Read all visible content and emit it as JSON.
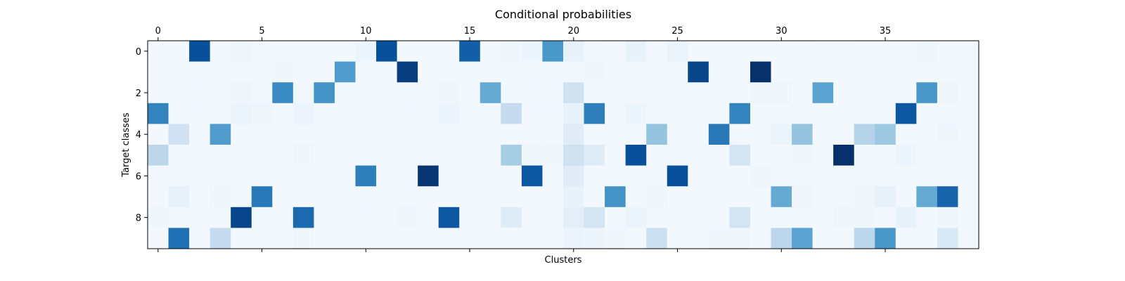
{
  "chart_data": {
    "type": "heatmap",
    "title": "Conditional probabilities",
    "xlabel": "Clusters",
    "ylabel": "Target classes",
    "x_axis_position": "top",
    "x_ticks": [
      0,
      5,
      10,
      15,
      20,
      25,
      30,
      35
    ],
    "y_ticks": [
      0,
      2,
      4,
      6,
      8
    ],
    "n_cols": 40,
    "n_rows": 10,
    "colormap": "Blues",
    "vmin": 0,
    "vmax": 1,
    "grid": false,
    "values": [
      [
        0.02,
        0.02,
        0.88,
        0.02,
        0.04,
        0.03,
        0.02,
        0.02,
        0.02,
        0.02,
        0.05,
        0.88,
        0.02,
        0.02,
        0.02,
        0.82,
        0.02,
        0.04,
        0.05,
        0.6,
        0.08,
        0.03,
        0.02,
        0.08,
        0.02,
        0.06,
        0.02,
        0.02,
        0.02,
        0.02,
        0.02,
        0.02,
        0.03,
        0.03,
        0.02,
        0.02,
        0.02,
        0.04,
        0.02,
        0.02
      ],
      [
        0.02,
        0.02,
        0.02,
        0.02,
        0.03,
        0.03,
        0.04,
        0.02,
        0.02,
        0.58,
        0.02,
        0.02,
        0.95,
        0.02,
        0.02,
        0.02,
        0.02,
        0.02,
        0.02,
        0.02,
        0.03,
        0.04,
        0.02,
        0.02,
        0.02,
        0.02,
        0.92,
        0.02,
        0.02,
        1.0,
        0.02,
        0.02,
        0.02,
        0.02,
        0.02,
        0.02,
        0.02,
        0.02,
        0.02,
        0.02
      ],
      [
        0.02,
        0.02,
        0.03,
        0.02,
        0.04,
        0.03,
        0.65,
        0.03,
        0.62,
        0.02,
        0.02,
        0.02,
        0.03,
        0.02,
        0.04,
        0.02,
        0.52,
        0.02,
        0.03,
        0.03,
        0.2,
        0.02,
        0.02,
        0.02,
        0.02,
        0.02,
        0.03,
        0.02,
        0.02,
        0.04,
        0.04,
        0.02,
        0.55,
        0.02,
        0.02,
        0.02,
        0.02,
        0.6,
        0.04,
        0.02
      ],
      [
        0.68,
        0.02,
        0.02,
        0.02,
        0.06,
        0.04,
        0.02,
        0.06,
        0.02,
        0.02,
        0.02,
        0.02,
        0.02,
        0.02,
        0.05,
        0.02,
        0.03,
        0.25,
        0.02,
        0.02,
        0.08,
        0.7,
        0.02,
        0.05,
        0.02,
        0.02,
        0.02,
        0.03,
        0.68,
        0.02,
        0.02,
        0.03,
        0.02,
        0.02,
        0.02,
        0.02,
        0.85,
        0.02,
        0.02,
        0.02
      ],
      [
        0.02,
        0.2,
        0.02,
        0.58,
        0.02,
        0.02,
        0.02,
        0.02,
        0.02,
        0.02,
        0.03,
        0.02,
        0.02,
        0.02,
        0.02,
        0.02,
        0.02,
        0.02,
        0.03,
        0.02,
        0.12,
        0.02,
        0.02,
        0.02,
        0.4,
        0.03,
        0.02,
        0.72,
        0.02,
        0.02,
        0.06,
        0.4,
        0.02,
        0.02,
        0.3,
        0.38,
        0.02,
        0.02,
        0.04,
        0.02
      ],
      [
        0.28,
        0.02,
        0.02,
        0.02,
        0.03,
        0.02,
        0.02,
        0.04,
        0.02,
        0.02,
        0.02,
        0.02,
        0.02,
        0.02,
        0.02,
        0.02,
        0.02,
        0.35,
        0.04,
        0.04,
        0.2,
        0.12,
        0.02,
        0.88,
        0.02,
        0.02,
        0.02,
        0.02,
        0.18,
        0.02,
        0.02,
        0.04,
        0.02,
        1.0,
        0.02,
        0.02,
        0.05,
        0.02,
        0.02,
        0.02
      ],
      [
        0.02,
        0.02,
        0.03,
        0.02,
        0.02,
        0.02,
        0.02,
        0.02,
        0.02,
        0.02,
        0.7,
        0.02,
        0.02,
        0.98,
        0.02,
        0.03,
        0.02,
        0.02,
        0.85,
        0.02,
        0.12,
        0.02,
        0.02,
        0.02,
        0.02,
        0.88,
        0.02,
        0.02,
        0.02,
        0.04,
        0.02,
        0.02,
        0.02,
        0.02,
        0.02,
        0.02,
        0.02,
        0.02,
        0.02,
        0.02
      ],
      [
        0.02,
        0.08,
        0.02,
        0.04,
        0.02,
        0.72,
        0.02,
        0.02,
        0.02,
        0.02,
        0.03,
        0.02,
        0.03,
        0.02,
        0.02,
        0.02,
        0.02,
        0.02,
        0.02,
        0.02,
        0.08,
        0.02,
        0.62,
        0.02,
        0.04,
        0.02,
        0.02,
        0.02,
        0.02,
        0.02,
        0.52,
        0.04,
        0.02,
        0.02,
        0.04,
        0.08,
        0.02,
        0.52,
        0.8,
        0.02
      ],
      [
        0.04,
        0.03,
        0.02,
        0.02,
        0.92,
        0.02,
        0.02,
        0.78,
        0.02,
        0.03,
        0.02,
        0.02,
        0.04,
        0.02,
        0.85,
        0.02,
        0.02,
        0.12,
        0.02,
        0.02,
        0.1,
        0.18,
        0.02,
        0.06,
        0.02,
        0.02,
        0.02,
        0.02,
        0.18,
        0.02,
        0.02,
        0.02,
        0.02,
        0.04,
        0.04,
        0.02,
        0.08,
        0.02,
        0.04,
        0.02
      ],
      [
        0.02,
        0.75,
        0.02,
        0.25,
        0.02,
        0.03,
        0.02,
        0.04,
        0.02,
        0.02,
        0.02,
        0.02,
        0.02,
        0.02,
        0.02,
        0.02,
        0.02,
        0.02,
        0.02,
        0.02,
        0.06,
        0.05,
        0.04,
        0.02,
        0.22,
        0.02,
        0.03,
        0.04,
        0.04,
        0.02,
        0.28,
        0.55,
        0.02,
        0.02,
        0.28,
        0.6,
        0.02,
        0.02,
        0.15,
        0.02
      ]
    ]
  }
}
